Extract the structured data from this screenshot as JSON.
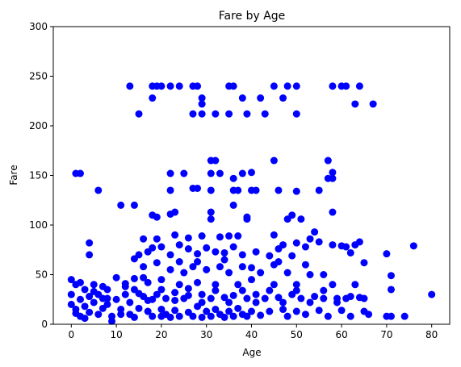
{
  "chart_data": {
    "type": "scatter",
    "title": "Fare by Age",
    "xlabel": "Age",
    "ylabel": "Fare",
    "xlim": [
      -4,
      84
    ],
    "ylim": [
      0,
      300
    ],
    "xticks": [
      0,
      10,
      20,
      30,
      40,
      50,
      60,
      70,
      80
    ],
    "yticks": [
      0,
      50,
      100,
      150,
      200,
      250,
      300
    ],
    "grid": false,
    "marker_color": "#0000ff",
    "series": [
      {
        "points": [
          [
            13,
            240
          ],
          [
            18,
            240
          ],
          [
            19,
            240
          ],
          [
            20,
            240
          ],
          [
            22,
            240
          ],
          [
            24,
            240
          ],
          [
            27,
            240
          ],
          [
            28,
            240
          ],
          [
            35,
            240
          ],
          [
            36,
            240
          ],
          [
            45,
            240
          ],
          [
            48,
            240
          ],
          [
            50,
            240
          ],
          [
            58,
            240
          ],
          [
            60,
            240
          ],
          [
            61,
            240
          ],
          [
            64,
            240
          ],
          [
            18,
            228
          ],
          [
            29,
            228
          ],
          [
            38,
            228
          ],
          [
            42,
            228
          ],
          [
            47,
            228
          ],
          [
            29,
            222
          ],
          [
            63,
            222
          ],
          [
            67,
            222
          ],
          [
            15,
            212
          ],
          [
            27,
            212
          ],
          [
            29,
            212
          ],
          [
            32,
            212
          ],
          [
            35,
            212
          ],
          [
            39,
            212
          ],
          [
            43,
            212
          ],
          [
            50,
            212
          ],
          [
            1,
            152
          ],
          [
            2,
            152
          ],
          [
            22,
            152
          ],
          [
            25,
            152
          ],
          [
            31,
            165
          ],
          [
            32,
            165
          ],
          [
            36,
            147
          ],
          [
            45,
            165
          ],
          [
            57,
            165
          ],
          [
            58,
            153
          ],
          [
            57,
            147
          ],
          [
            58,
            147
          ],
          [
            33,
            152
          ],
          [
            38,
            152
          ],
          [
            40,
            153
          ],
          [
            31,
            152
          ],
          [
            6,
            135
          ],
          [
            14,
            120
          ],
          [
            11,
            120
          ],
          [
            22,
            135
          ],
          [
            27,
            137
          ],
          [
            28,
            137
          ],
          [
            31,
            135
          ],
          [
            36,
            135
          ],
          [
            37,
            135
          ],
          [
            40,
            135
          ],
          [
            41,
            135
          ],
          [
            46,
            135
          ],
          [
            50,
            134
          ],
          [
            55,
            135
          ],
          [
            36,
            120
          ],
          [
            31,
            113
          ],
          [
            18,
            110
          ],
          [
            19,
            108
          ],
          [
            22,
            111
          ],
          [
            23,
            113
          ],
          [
            31,
            106
          ],
          [
            39,
            108
          ],
          [
            39,
            106
          ],
          [
            48,
            106
          ],
          [
            49,
            110
          ],
          [
            51,
            106
          ],
          [
            58,
            113
          ],
          [
            16,
            86
          ],
          [
            19,
            86
          ],
          [
            23,
            90
          ],
          [
            26,
            87
          ],
          [
            29,
            89
          ],
          [
            33,
            88
          ],
          [
            35,
            89
          ],
          [
            37,
            89
          ],
          [
            45,
            90
          ],
          [
            47,
            80
          ],
          [
            50,
            82
          ],
          [
            53,
            86
          ],
          [
            54,
            93
          ],
          [
            61,
            78
          ],
          [
            63,
            80
          ],
          [
            64,
            83
          ],
          [
            4,
            82
          ],
          [
            4,
            70
          ],
          [
            14,
            66
          ],
          [
            15,
            70
          ],
          [
            17,
            73
          ],
          [
            18,
            77
          ],
          [
            20,
            78
          ],
          [
            22,
            70
          ],
          [
            24,
            80
          ],
          [
            26,
            76
          ],
          [
            28,
            71
          ],
          [
            30,
            77
          ],
          [
            32,
            73
          ],
          [
            34,
            72
          ],
          [
            36,
            78
          ],
          [
            38,
            70
          ],
          [
            41,
            73
          ],
          [
            44,
            69
          ],
          [
            46,
            76
          ],
          [
            49,
            69
          ],
          [
            52,
            78
          ],
          [
            55,
            83
          ],
          [
            58,
            80
          ],
          [
            60,
            79
          ],
          [
            62,
            72
          ],
          [
            65,
            62
          ],
          [
            70,
            71
          ],
          [
            71,
            49
          ],
          [
            76,
            79
          ],
          [
            80,
            30
          ],
          [
            0,
            20
          ],
          [
            0,
            30
          ],
          [
            1,
            40
          ],
          [
            1,
            15
          ],
          [
            2,
            25
          ],
          [
            2,
            8
          ],
          [
            3,
            35
          ],
          [
            3,
            18
          ],
          [
            4,
            28
          ],
          [
            4,
            12
          ],
          [
            5,
            22
          ],
          [
            5,
            40
          ],
          [
            6,
            10
          ],
          [
            6,
            30
          ],
          [
            7,
            16
          ],
          [
            7,
            26
          ],
          [
            8,
            35
          ],
          [
            8,
            20
          ],
          [
            9,
            8
          ],
          [
            9,
            3
          ],
          [
            10,
            25
          ],
          [
            10,
            47
          ],
          [
            11,
            15
          ],
          [
            12,
            30
          ],
          [
            12,
            38
          ],
          [
            13,
            10
          ],
          [
            13,
            22
          ],
          [
            14,
            46
          ],
          [
            14,
            7
          ],
          [
            15,
            31
          ],
          [
            15,
            16
          ],
          [
            16,
            28
          ],
          [
            16,
            58
          ],
          [
            17,
            13
          ],
          [
            17,
            42
          ],
          [
            18,
            25
          ],
          [
            18,
            8
          ],
          [
            19,
            30
          ],
          [
            19,
            62
          ],
          [
            20,
            15
          ],
          [
            20,
            45
          ],
          [
            20,
            8
          ],
          [
            21,
            26
          ],
          [
            21,
            10
          ],
          [
            22,
            55
          ],
          [
            22,
            7
          ],
          [
            23,
            32
          ],
          [
            23,
            14
          ],
          [
            24,
            40
          ],
          [
            24,
            8
          ],
          [
            25,
            26
          ],
          [
            25,
            52
          ],
          [
            26,
            12
          ],
          [
            26,
            29
          ],
          [
            27,
            58
          ],
          [
            27,
            8
          ],
          [
            28,
            18
          ],
          [
            28,
            42
          ],
          [
            29,
            7
          ],
          [
            29,
            30
          ],
          [
            30,
            55
          ],
          [
            30,
            13
          ],
          [
            31,
            26
          ],
          [
            31,
            8
          ],
          [
            32,
            40
          ],
          [
            32,
            15
          ],
          [
            33,
            58
          ],
          [
            33,
            10
          ],
          [
            34,
            27
          ],
          [
            34,
            7
          ],
          [
            35,
            52
          ],
          [
            35,
            13
          ],
          [
            36,
            29
          ],
          [
            36,
            8
          ],
          [
            37,
            40
          ],
          [
            37,
            16
          ],
          [
            38,
            58
          ],
          [
            38,
            10
          ],
          [
            39,
            26
          ],
          [
            39,
            8
          ],
          [
            40,
            45
          ],
          [
            40,
            13
          ],
          [
            41,
            30
          ],
          [
            42,
            52
          ],
          [
            42,
            9
          ],
          [
            43,
            26
          ],
          [
            44,
            13
          ],
          [
            45,
            40
          ],
          [
            45,
            60
          ],
          [
            46,
            27
          ],
          [
            47,
            15
          ],
          [
            48,
            52
          ],
          [
            48,
            8
          ],
          [
            49,
            30
          ],
          [
            50,
            13
          ],
          [
            50,
            40
          ],
          [
            51,
            26
          ],
          [
            52,
            10
          ],
          [
            53,
            50
          ],
          [
            54,
            28
          ],
          [
            55,
            14
          ],
          [
            56,
            26
          ],
          [
            57,
            8
          ],
          [
            58,
            40
          ],
          [
            59,
            26
          ],
          [
            60,
            14
          ],
          [
            61,
            26
          ],
          [
            62,
            8
          ],
          [
            63,
            40
          ],
          [
            64,
            27
          ],
          [
            65,
            13
          ],
          [
            66,
            10
          ],
          [
            70,
            8
          ],
          [
            71,
            8
          ],
          [
            71,
            35
          ],
          [
            74,
            8
          ],
          [
            0,
            45
          ],
          [
            2,
            42
          ],
          [
            5,
            33
          ],
          [
            8,
            26
          ],
          [
            11,
            10
          ],
          [
            14,
            35
          ],
          [
            17,
            24
          ],
          [
            20,
            35
          ],
          [
            23,
            24
          ],
          [
            26,
            36
          ],
          [
            29,
            22
          ],
          [
            32,
            34
          ],
          [
            35,
            22
          ],
          [
            38,
            34
          ],
          [
            41,
            22
          ],
          [
            44,
            34
          ],
          [
            47,
            22
          ],
          [
            50,
            34
          ],
          [
            53,
            22
          ],
          [
            56,
            34
          ],
          [
            59,
            22
          ],
          [
            62,
            28
          ],
          [
            65,
            26
          ],
          [
            1,
            11
          ],
          [
            3,
            6
          ],
          [
            7,
            38
          ],
          [
            12,
            41
          ],
          [
            16,
            47
          ],
          [
            24,
            63
          ],
          [
            28,
            63
          ],
          [
            34,
            65
          ],
          [
            40,
            57
          ],
          [
            46,
            63
          ],
          [
            52,
            60
          ],
          [
            56,
            50
          ]
        ]
      }
    ]
  }
}
